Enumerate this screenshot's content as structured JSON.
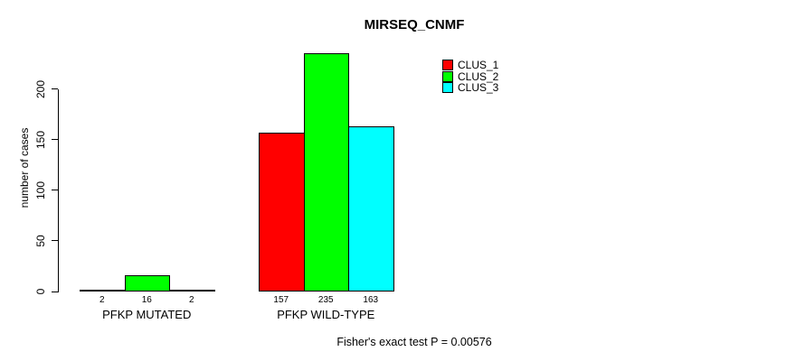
{
  "chart_data": {
    "type": "bar",
    "grouped": true,
    "title": "MIRSEQ_CNMF",
    "xlabel": "",
    "ylabel": "number of cases",
    "categories": [
      "PFKP MUTATED",
      "PFKP WILD-TYPE"
    ],
    "series": [
      {
        "name": "CLUS_1",
        "color": "#FF0000",
        "values": [
          2,
          157
        ]
      },
      {
        "name": "CLUS_2",
        "color": "#00FF00",
        "values": [
          16,
          235
        ]
      },
      {
        "name": "CLUS_3",
        "color": "#00FFFF",
        "values": [
          2,
          163
        ]
      }
    ],
    "yticks": [
      0,
      50,
      100,
      150,
      200
    ],
    "ylim": [
      0,
      240
    ],
    "grid": false,
    "legend_position": "top-right-inside",
    "bar_value_labels_shown": true,
    "bar_border_color": "#000000",
    "annotation": "Fisher's exact test P = 0.00576"
  }
}
